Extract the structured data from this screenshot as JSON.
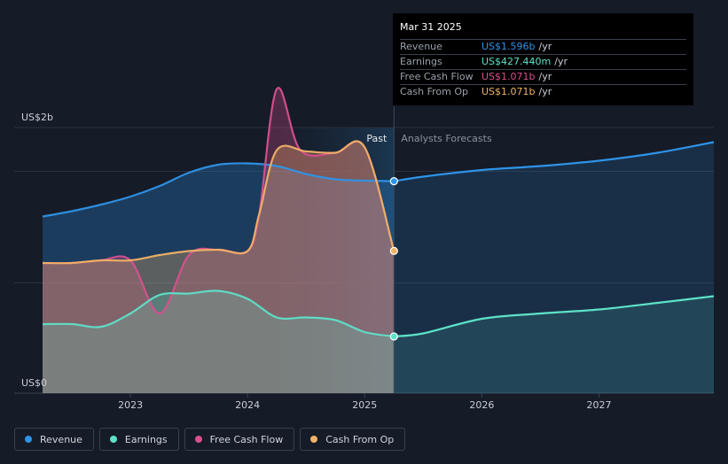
{
  "chart_data": {
    "type": "area",
    "y_unit_top": "US$2b",
    "y_unit_bottom": "US$0",
    "ylim": [
      0,
      2.0
    ],
    "xlim": [
      2022.25,
      2027.98
    ],
    "x_ticks": [
      2023,
      2024,
      2025,
      2026,
      2027
    ],
    "x_tick_labels": [
      "2023",
      "2024",
      "2025",
      "2026",
      "2027"
    ],
    "past_label": "Past",
    "forecast_label": "Analysts Forecasts",
    "divider_x": 2025.25,
    "past_shade_start_x": 2024.25,
    "series": [
      {
        "name": "Revenue",
        "color": "#2f93e8",
        "past": [
          [
            2022.25,
            1.33
          ],
          [
            2022.5,
            1.37
          ],
          [
            2022.75,
            1.42
          ],
          [
            2023.0,
            1.48
          ],
          [
            2023.25,
            1.56
          ],
          [
            2023.5,
            1.66
          ],
          [
            2023.75,
            1.72
          ],
          [
            2024.0,
            1.73
          ],
          [
            2024.25,
            1.71
          ],
          [
            2024.5,
            1.65
          ],
          [
            2024.75,
            1.61
          ],
          [
            2025.0,
            1.6
          ],
          [
            2025.25,
            1.596
          ]
        ],
        "forecast": [
          [
            2025.25,
            1.596
          ],
          [
            2025.5,
            1.63
          ],
          [
            2026.0,
            1.68
          ],
          [
            2026.5,
            1.71
          ],
          [
            2027.0,
            1.75
          ],
          [
            2027.5,
            1.81
          ],
          [
            2027.98,
            1.89
          ]
        ]
      },
      {
        "name": "Earnings",
        "color": "#5ee2c8",
        "past": [
          [
            2022.25,
            0.52
          ],
          [
            2022.5,
            0.52
          ],
          [
            2022.75,
            0.5
          ],
          [
            2023.0,
            0.6
          ],
          [
            2023.25,
            0.74
          ],
          [
            2023.5,
            0.75
          ],
          [
            2023.75,
            0.77
          ],
          [
            2024.0,
            0.71
          ],
          [
            2024.25,
            0.57
          ],
          [
            2024.5,
            0.57
          ],
          [
            2024.75,
            0.55
          ],
          [
            2025.0,
            0.46
          ],
          [
            2025.25,
            0.427
          ]
        ],
        "forecast": [
          [
            2025.25,
            0.427
          ],
          [
            2025.5,
            0.45
          ],
          [
            2026.0,
            0.56
          ],
          [
            2026.5,
            0.6
          ],
          [
            2027.0,
            0.63
          ],
          [
            2027.5,
            0.68
          ],
          [
            2027.98,
            0.73
          ]
        ]
      },
      {
        "name": "Free Cash Flow",
        "color": "#d8508f",
        "past": [
          [
            2022.25,
            0.98
          ],
          [
            2022.5,
            0.98
          ],
          [
            2022.75,
            1.0
          ],
          [
            2023.0,
            1.0
          ],
          [
            2023.25,
            0.6
          ],
          [
            2023.5,
            1.04
          ],
          [
            2023.75,
            1.08
          ],
          [
            2024.0,
            1.07
          ],
          [
            2024.1,
            1.35
          ],
          [
            2024.25,
            2.29
          ],
          [
            2024.45,
            1.83
          ],
          [
            2024.75,
            1.81
          ],
          [
            2025.0,
            1.85
          ],
          [
            2025.25,
            1.071
          ]
        ],
        "forecast": []
      },
      {
        "name": "Cash From Op",
        "color": "#f0b266",
        "past": [
          [
            2022.25,
            0.98
          ],
          [
            2022.5,
            0.98
          ],
          [
            2022.75,
            1.0
          ],
          [
            2023.0,
            1.0
          ],
          [
            2023.25,
            1.04
          ],
          [
            2023.5,
            1.07
          ],
          [
            2023.75,
            1.08
          ],
          [
            2024.0,
            1.07
          ],
          [
            2024.1,
            1.35
          ],
          [
            2024.25,
            1.83
          ],
          [
            2024.5,
            1.82
          ],
          [
            2024.75,
            1.81
          ],
          [
            2025.0,
            1.85
          ],
          [
            2025.25,
            1.071
          ]
        ],
        "forecast": []
      }
    ]
  },
  "tooltip": {
    "date": "Mar 31 2025",
    "rows": [
      {
        "label": "Revenue",
        "value": "US$1.596b",
        "unit": "/yr",
        "color": "#2f93e8"
      },
      {
        "label": "Earnings",
        "value": "US$427.440m",
        "unit": "/yr",
        "color": "#5ee2c8"
      },
      {
        "label": "Free Cash Flow",
        "value": "US$1.071b",
        "unit": "/yr",
        "color": "#d8508f"
      },
      {
        "label": "Cash From Op",
        "value": "US$1.071b",
        "unit": "/yr",
        "color": "#f0b266"
      }
    ]
  },
  "legend": [
    {
      "label": "Revenue",
      "color": "#2f93e8"
    },
    {
      "label": "Earnings",
      "color": "#5ee2c8"
    },
    {
      "label": "Free Cash Flow",
      "color": "#d8508f"
    },
    {
      "label": "Cash From Op",
      "color": "#f0b266"
    }
  ]
}
